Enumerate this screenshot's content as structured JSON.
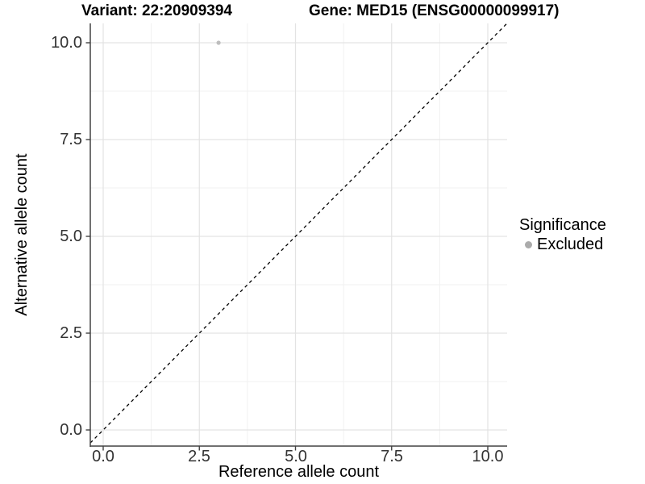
{
  "plot": {
    "title_variant": "Variant: 22:20909394",
    "title_gene": "Gene: MED15 (ENSG00000099917)"
  },
  "axes": {
    "x": {
      "label": "Reference allele count",
      "tick_labels": [
        "0.0",
        "2.5",
        "5.0",
        "7.5",
        "10.0"
      ]
    },
    "y": {
      "label": "Alternative allele count",
      "tick_labels": [
        "0.0",
        "2.5",
        "5.0",
        "7.5",
        "10.0"
      ]
    }
  },
  "legend": {
    "title": "Significance",
    "items": [
      {
        "label": "Excluded",
        "color": "#ababab",
        "marker": "circle-icon"
      }
    ]
  },
  "colors": {
    "major_grid": "#e3e3e3",
    "minor_grid": "#f1f1f1",
    "axis": "#424242",
    "point": "#bdbdbd",
    "reference_line": "#000000",
    "background": "#ffffff"
  },
  "chart_data": {
    "type": "scatter",
    "title": "Variant: 22:20909394 | Gene: MED15 (ENSG00000099917)",
    "xlabel": "Reference allele count",
    "ylabel": "Alternative allele count",
    "xlim": [
      -0.34,
      10.5
    ],
    "ylim": [
      -0.42,
      10.5
    ],
    "xticks": [
      0,
      2.5,
      5,
      7.5,
      10
    ],
    "yticks": [
      0,
      2.5,
      5,
      7.5,
      10
    ],
    "minor_ticks": [
      1.25,
      3.75,
      6.25,
      8.75
    ],
    "grid": "major+minor",
    "legend_position": "right",
    "legend_title": "Significance",
    "series": [
      {
        "name": "Excluded",
        "color": "#bdbdbd",
        "points": [
          {
            "x": 3,
            "y": 10
          }
        ]
      }
    ],
    "reference_line": {
      "type": "identity",
      "slope": 1,
      "intercept": 0,
      "linestyle": "dashed",
      "color": "#000000"
    }
  }
}
